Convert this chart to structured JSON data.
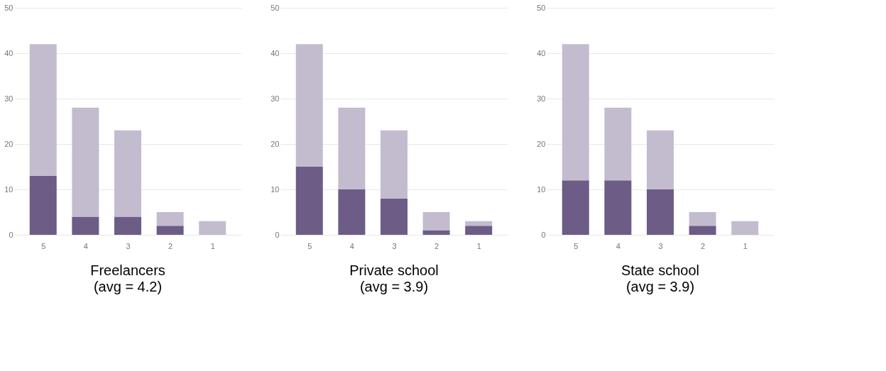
{
  "chart_data": [
    {
      "type": "bar",
      "stacked": true,
      "title": "Freelancers",
      "subtitle": "(avg = 4.2)",
      "categories": [
        "5",
        "4",
        "3",
        "2",
        "1"
      ],
      "ylim": [
        0,
        50
      ],
      "yticks": [
        0,
        10,
        20,
        30,
        40,
        50
      ],
      "grid": "y",
      "series": [
        {
          "color": "#6c5c86",
          "values": [
            13,
            4,
            4,
            2,
            null
          ]
        },
        {
          "color": "#c3bccf",
          "values": [
            29,
            24,
            19,
            3,
            3
          ]
        }
      ]
    },
    {
      "type": "bar",
      "stacked": true,
      "title": "Private school",
      "subtitle": "(avg = 3.9)",
      "categories": [
        "5",
        "4",
        "3",
        "2",
        "1"
      ],
      "ylim": [
        0,
        50
      ],
      "yticks": [
        0,
        10,
        20,
        30,
        40,
        50
      ],
      "grid": "y",
      "series": [
        {
          "color": "#6c5c86",
          "values": [
            15,
            10,
            8,
            1,
            2
          ]
        },
        {
          "color": "#c3bccf",
          "values": [
            27,
            18,
            15,
            4,
            1
          ]
        }
      ]
    },
    {
      "type": "bar",
      "stacked": true,
      "title": "State school",
      "subtitle": "(avg = 3.9)",
      "categories": [
        "5",
        "4",
        "3",
        "2",
        "1"
      ],
      "ylim": [
        0,
        50
      ],
      "yticks": [
        0,
        10,
        20,
        30,
        40,
        50
      ],
      "grid": "y",
      "series": [
        {
          "color": "#6c5c86",
          "values": [
            12,
            12,
            10,
            2,
            null
          ]
        },
        {
          "color": "#c3bccf",
          "values": [
            30,
            16,
            13,
            3,
            3
          ]
        }
      ]
    }
  ]
}
